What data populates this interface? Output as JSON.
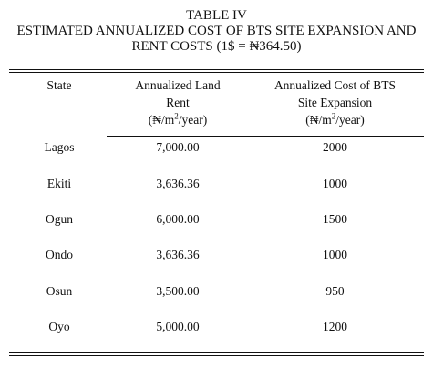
{
  "caption": {
    "label": "TABLE IV",
    "title_line1": "ESTIMATED ANNUALIZED COST OF BTS SITE EXPANSION AND",
    "title_line2": "RENT COSTS (1$ = ₦364.50)"
  },
  "headers": {
    "state": "State",
    "rent_line1": "Annualized Land",
    "rent_line2": "Rent",
    "rent_unit_pre": "(₦/m",
    "rent_unit_sup": "2",
    "rent_unit_post": "/year)",
    "cost_line1": "Annualized Cost of BTS",
    "cost_line2": "Site Expansion",
    "cost_unit_pre": "(₦/m",
    "cost_unit_sup": "2",
    "cost_unit_post": "/year)"
  },
  "rows": [
    {
      "state": "Lagos",
      "rent": "7,000.00",
      "cost": "2000"
    },
    {
      "state": "Ekiti",
      "rent": "3,636.36",
      "cost": "1000"
    },
    {
      "state": "Ogun",
      "rent": "6,000.00",
      "cost": "1500"
    },
    {
      "state": "Ondo",
      "rent": "3,636.36",
      "cost": "1000"
    },
    {
      "state": "Osun",
      "rent": "3,500.00",
      "cost": "950"
    },
    {
      "state": "Oyo",
      "rent": "5,000.00",
      "cost": "1200"
    }
  ]
}
